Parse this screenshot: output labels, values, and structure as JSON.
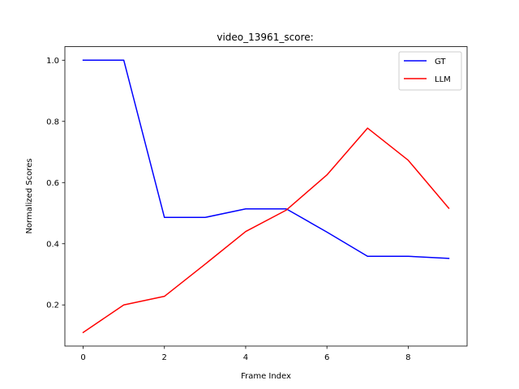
{
  "chart_data": {
    "type": "line",
    "title": "video_13961_score:",
    "xlabel": "Frame Index",
    "ylabel": "Normalized Scores",
    "x": [
      0,
      1,
      2,
      3,
      4,
      5,
      6,
      7,
      8,
      9
    ],
    "series": [
      {
        "name": "GT",
        "color": "#0000ff",
        "values": [
          1.0,
          1.0,
          0.486,
          0.486,
          0.514,
          0.514,
          0.438,
          0.359,
          0.359,
          0.352
        ]
      },
      {
        "name": "LLM",
        "color": "#ff0000",
        "values": [
          0.11,
          0.2,
          0.228,
          0.333,
          0.44,
          0.51,
          0.625,
          0.778,
          0.673,
          0.516
        ]
      }
    ],
    "xlim": [
      -0.45,
      9.45
    ],
    "ylim": [
      0.0655,
      1.0445
    ],
    "xticks": [
      0,
      2,
      4,
      6,
      8
    ],
    "yticks": [
      0.2,
      0.4,
      0.6,
      0.8,
      1.0
    ],
    "ytick_labels": [
      "0.2",
      "0.4",
      "0.6",
      "0.8",
      "1.0"
    ],
    "grid": false,
    "legend_position": "upper right"
  }
}
